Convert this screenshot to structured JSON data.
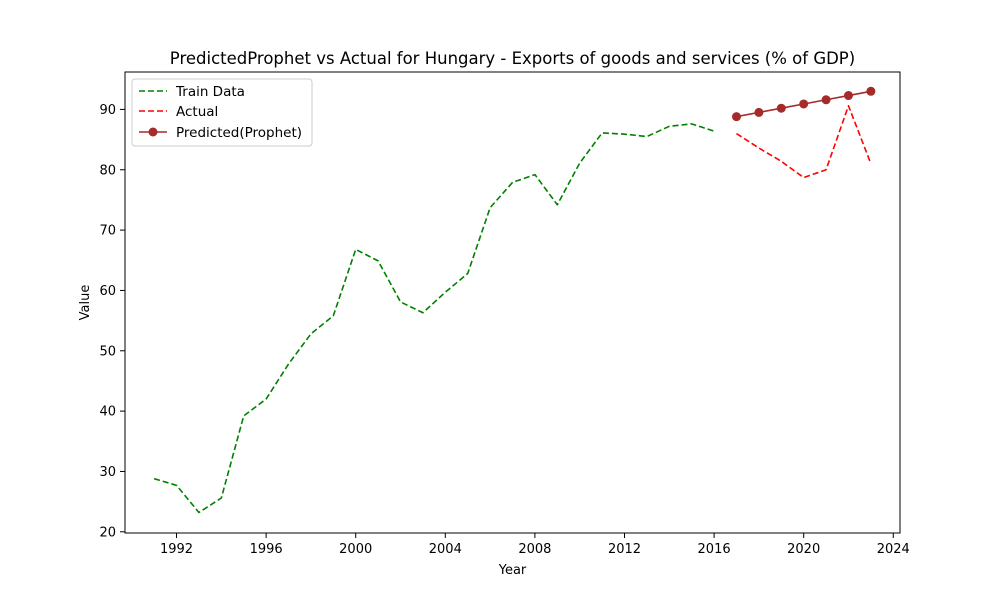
{
  "colors": {
    "train": "#008000",
    "actual": "#ff0000",
    "predicted": "#a52a2a",
    "axis": "#000000",
    "background": "#ffffff",
    "legend_border": "#cccccc"
  },
  "chart_data": {
    "type": "line",
    "title": "PredictedProphet vs Actual for Hungary - Exports of goods and services (% of GDP)",
    "xlabel": "Year",
    "ylabel": "Value",
    "xlim": [
      1989.7,
      2024.3
    ],
    "ylim": [
      19.8,
      96.2
    ],
    "xticks": [
      1992,
      1996,
      2000,
      2004,
      2008,
      2012,
      2016,
      2020,
      2024
    ],
    "yticks": [
      20,
      30,
      40,
      50,
      60,
      70,
      80,
      90
    ],
    "grid": false,
    "legend_position": "upper left",
    "series": [
      {
        "name": "Train Data",
        "style": "dashed",
        "color": "#008000",
        "marker": "none",
        "x": [
          1991,
          1992,
          1993,
          1994,
          1995,
          1996,
          1997,
          1998,
          1999,
          2000,
          2001,
          2002,
          2003,
          2004,
          2005,
          2006,
          2007,
          2008,
          2009,
          2010,
          2011,
          2012,
          2013,
          2014,
          2015,
          2016
        ],
        "y": [
          28.8,
          27.7,
          23.2,
          25.6,
          39.2,
          42.0,
          47.8,
          52.8,
          55.8,
          66.8,
          64.9,
          58.1,
          56.3,
          59.7,
          62.8,
          73.7,
          77.9,
          79.2,
          74.2,
          81.1,
          86.1,
          85.9,
          85.5,
          87.2,
          87.6,
          86.4
        ]
      },
      {
        "name": "Actual",
        "style": "dashed",
        "color": "#ff0000",
        "marker": "none",
        "x": [
          2017,
          2018,
          2019,
          2020,
          2021,
          2022,
          2023
        ],
        "y": [
          86.0,
          83.6,
          81.4,
          78.7,
          80.0,
          90.6,
          81.0
        ]
      },
      {
        "name": "Predicted(Prophet)",
        "style": "solid",
        "color": "#a52a2a",
        "marker": "circle",
        "x": [
          2017,
          2018,
          2019,
          2020,
          2021,
          2022,
          2023
        ],
        "y": [
          88.8,
          89.5,
          90.2,
          90.9,
          91.6,
          92.3,
          93.0
        ]
      }
    ]
  }
}
